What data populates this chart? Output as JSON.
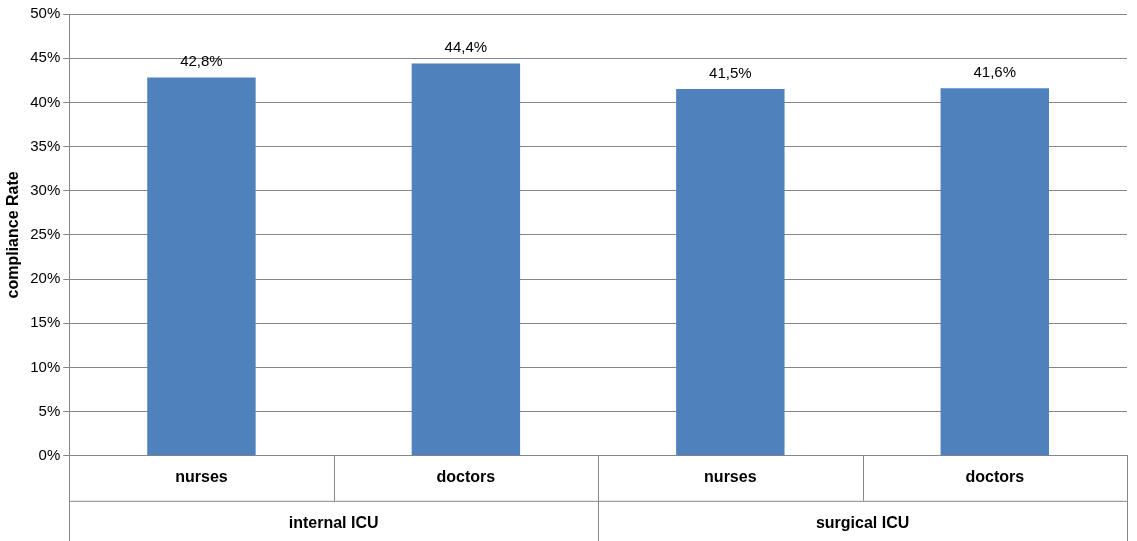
{
  "chart_data": {
    "type": "bar",
    "ylabel": "compliance Rate",
    "categories": [
      "nurses",
      "doctors",
      "nurses",
      "doctors"
    ],
    "values": [
      42.8,
      44.4,
      41.5,
      41.6
    ],
    "value_labels": [
      "42,8%",
      "44,4%",
      "41,5%",
      "41,6%"
    ],
    "color": "#4f81bd",
    "ylim": [
      0,
      50
    ],
    "yticks": [
      {
        "value": 0,
        "label": "0%"
      },
      {
        "value": 5,
        "label": "5%"
      },
      {
        "value": 10,
        "label": "10%"
      },
      {
        "value": 15,
        "label": "15%"
      },
      {
        "value": 20,
        "label": "20%"
      },
      {
        "value": 25,
        "label": "25%"
      },
      {
        "value": 30,
        "label": "30%"
      },
      {
        "value": 35,
        "label": "35%"
      },
      {
        "value": 40,
        "label": "40%"
      },
      {
        "value": 45,
        "label": "45%"
      },
      {
        "value": 50,
        "label": "50%"
      }
    ],
    "grid": "y",
    "annotations": [
      "internal ICU",
      "surgical ICU"
    ]
  }
}
